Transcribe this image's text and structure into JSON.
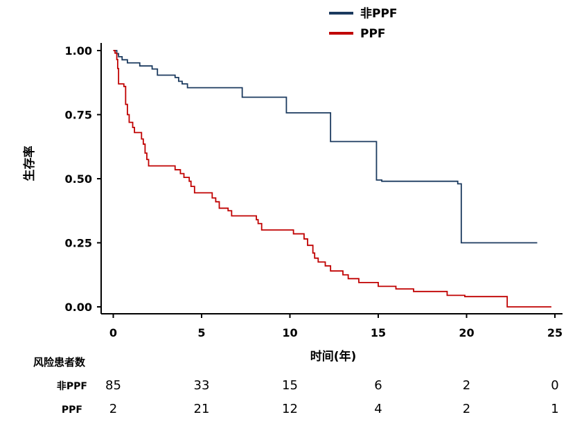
{
  "chart_data": {
    "type": "line",
    "title": "",
    "xlabel": "时间(年)",
    "ylabel": "生存率",
    "xlim": [
      -0.5,
      25.5
    ],
    "ylim": [
      -0.03,
      1.03
    ],
    "x_ticks": [
      0,
      5,
      10,
      15,
      20,
      25
    ],
    "y_ticks": [
      0,
      0.25,
      0.5,
      0.75,
      1.0
    ],
    "y_tick_labels": [
      "0.00",
      "0.25",
      "0.50",
      "0.75",
      "1.00"
    ],
    "grid": false,
    "legend_position": "top-center",
    "series": [
      {
        "name": "非PPF",
        "color": "#1b3a5f",
        "step_points": [
          [
            0,
            1.0
          ],
          [
            0.2,
            0.988
          ],
          [
            0.3,
            0.976
          ],
          [
            0.5,
            0.964
          ],
          [
            0.8,
            0.952
          ],
          [
            1.5,
            0.94
          ],
          [
            2.2,
            0.928
          ],
          [
            2.5,
            0.916
          ],
          [
            2.5,
            0.904
          ],
          [
            3.5,
            0.895
          ],
          [
            3.7,
            0.88
          ],
          [
            3.9,
            0.87
          ],
          [
            4.2,
            0.855
          ],
          [
            7.3,
            0.818
          ],
          [
            9.8,
            0.757
          ],
          [
            12.3,
            0.645
          ],
          [
            14.9,
            0.495
          ],
          [
            15.2,
            0.49
          ],
          [
            19.5,
            0.48
          ],
          [
            19.7,
            0.25
          ],
          [
            24.0,
            0.25
          ]
        ]
      },
      {
        "name": "PPF",
        "color": "#c00000",
        "step_points": [
          [
            0,
            1.0
          ],
          [
            0.1,
            0.99
          ],
          [
            0.2,
            0.965
          ],
          [
            0.25,
            0.93
          ],
          [
            0.3,
            0.87
          ],
          [
            0.6,
            0.86
          ],
          [
            0.7,
            0.79
          ],
          [
            0.8,
            0.75
          ],
          [
            0.9,
            0.72
          ],
          [
            1.1,
            0.7
          ],
          [
            1.2,
            0.68
          ],
          [
            1.6,
            0.655
          ],
          [
            1.7,
            0.635
          ],
          [
            1.8,
            0.6
          ],
          [
            1.9,
            0.575
          ],
          [
            2.0,
            0.55
          ],
          [
            3.5,
            0.535
          ],
          [
            3.8,
            0.52
          ],
          [
            4.0,
            0.505
          ],
          [
            4.3,
            0.49
          ],
          [
            4.4,
            0.47
          ],
          [
            4.6,
            0.445
          ],
          [
            5.6,
            0.425
          ],
          [
            5.8,
            0.41
          ],
          [
            6.0,
            0.385
          ],
          [
            6.5,
            0.375
          ],
          [
            6.7,
            0.355
          ],
          [
            8.1,
            0.34
          ],
          [
            8.2,
            0.325
          ],
          [
            8.4,
            0.3
          ],
          [
            10.2,
            0.285
          ],
          [
            10.8,
            0.265
          ],
          [
            11.0,
            0.24
          ],
          [
            11.3,
            0.21
          ],
          [
            11.4,
            0.19
          ],
          [
            11.6,
            0.175
          ],
          [
            12.0,
            0.16
          ],
          [
            12.3,
            0.14
          ],
          [
            13.0,
            0.125
          ],
          [
            13.3,
            0.11
          ],
          [
            13.9,
            0.095
          ],
          [
            15.0,
            0.08
          ],
          [
            16.0,
            0.07
          ],
          [
            17.0,
            0.06
          ],
          [
            18.9,
            0.045
          ],
          [
            19.9,
            0.04
          ],
          [
            22.3,
            0.0
          ],
          [
            24.8,
            0.0
          ]
        ]
      }
    ],
    "risk_table": {
      "title": "风险患者数",
      "times": [
        0,
        5,
        10,
        15,
        20,
        25
      ],
      "rows": [
        {
          "name": "非PPF",
          "values": [
            85,
            33,
            15,
            6,
            2,
            0
          ]
        },
        {
          "name": "PPF",
          "values": [
            2,
            21,
            12,
            4,
            2,
            1
          ]
        }
      ]
    }
  }
}
